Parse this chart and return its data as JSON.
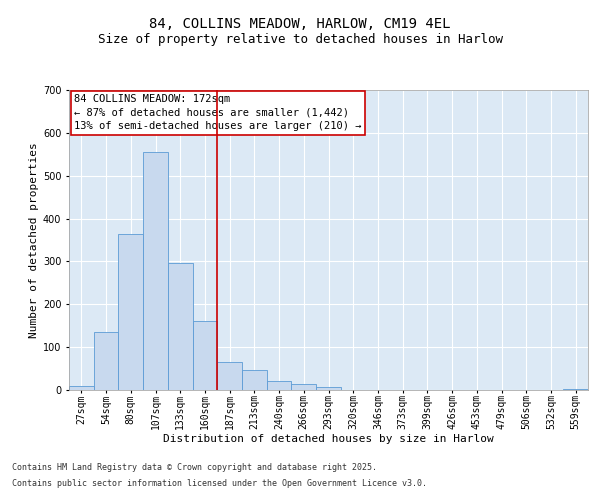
{
  "title1": "84, COLLINS MEADOW, HARLOW, CM19 4EL",
  "title2": "Size of property relative to detached houses in Harlow",
  "xlabel": "Distribution of detached houses by size in Harlow",
  "ylabel": "Number of detached properties",
  "bar_color": "#c8d9ee",
  "bar_edge_color": "#5b9bd5",
  "categories": [
    "27sqm",
    "54sqm",
    "80sqm",
    "107sqm",
    "133sqm",
    "160sqm",
    "187sqm",
    "213sqm",
    "240sqm",
    "266sqm",
    "293sqm",
    "320sqm",
    "346sqm",
    "373sqm",
    "399sqm",
    "426sqm",
    "453sqm",
    "479sqm",
    "506sqm",
    "532sqm",
    "559sqm"
  ],
  "values": [
    10,
    135,
    363,
    555,
    297,
    160,
    65,
    47,
    22,
    14,
    7,
    0,
    0,
    0,
    0,
    0,
    0,
    0,
    0,
    0,
    3
  ],
  "vline_x": 5.5,
  "vline_color": "#cc0000",
  "ylim": [
    0,
    700
  ],
  "yticks": [
    0,
    100,
    200,
    300,
    400,
    500,
    600,
    700
  ],
  "annotation_title": "84 COLLINS MEADOW: 172sqm",
  "annotation_line1": "← 87% of detached houses are smaller (1,442)",
  "annotation_line2": "13% of semi-detached houses are larger (210) →",
  "annotation_box_color": "#ffffff",
  "annotation_box_edge": "#cc0000",
  "footnote1": "Contains HM Land Registry data © Crown copyright and database right 2025.",
  "footnote2": "Contains public sector information licensed under the Open Government Licence v3.0.",
  "background_color": "#dce9f5",
  "grid_color": "#ffffff",
  "fig_bg_color": "#ffffff",
  "title_fontsize": 10,
  "subtitle_fontsize": 9,
  "axis_label_fontsize": 8,
  "tick_fontsize": 7,
  "annotation_fontsize": 7.5,
  "footnote_fontsize": 6
}
